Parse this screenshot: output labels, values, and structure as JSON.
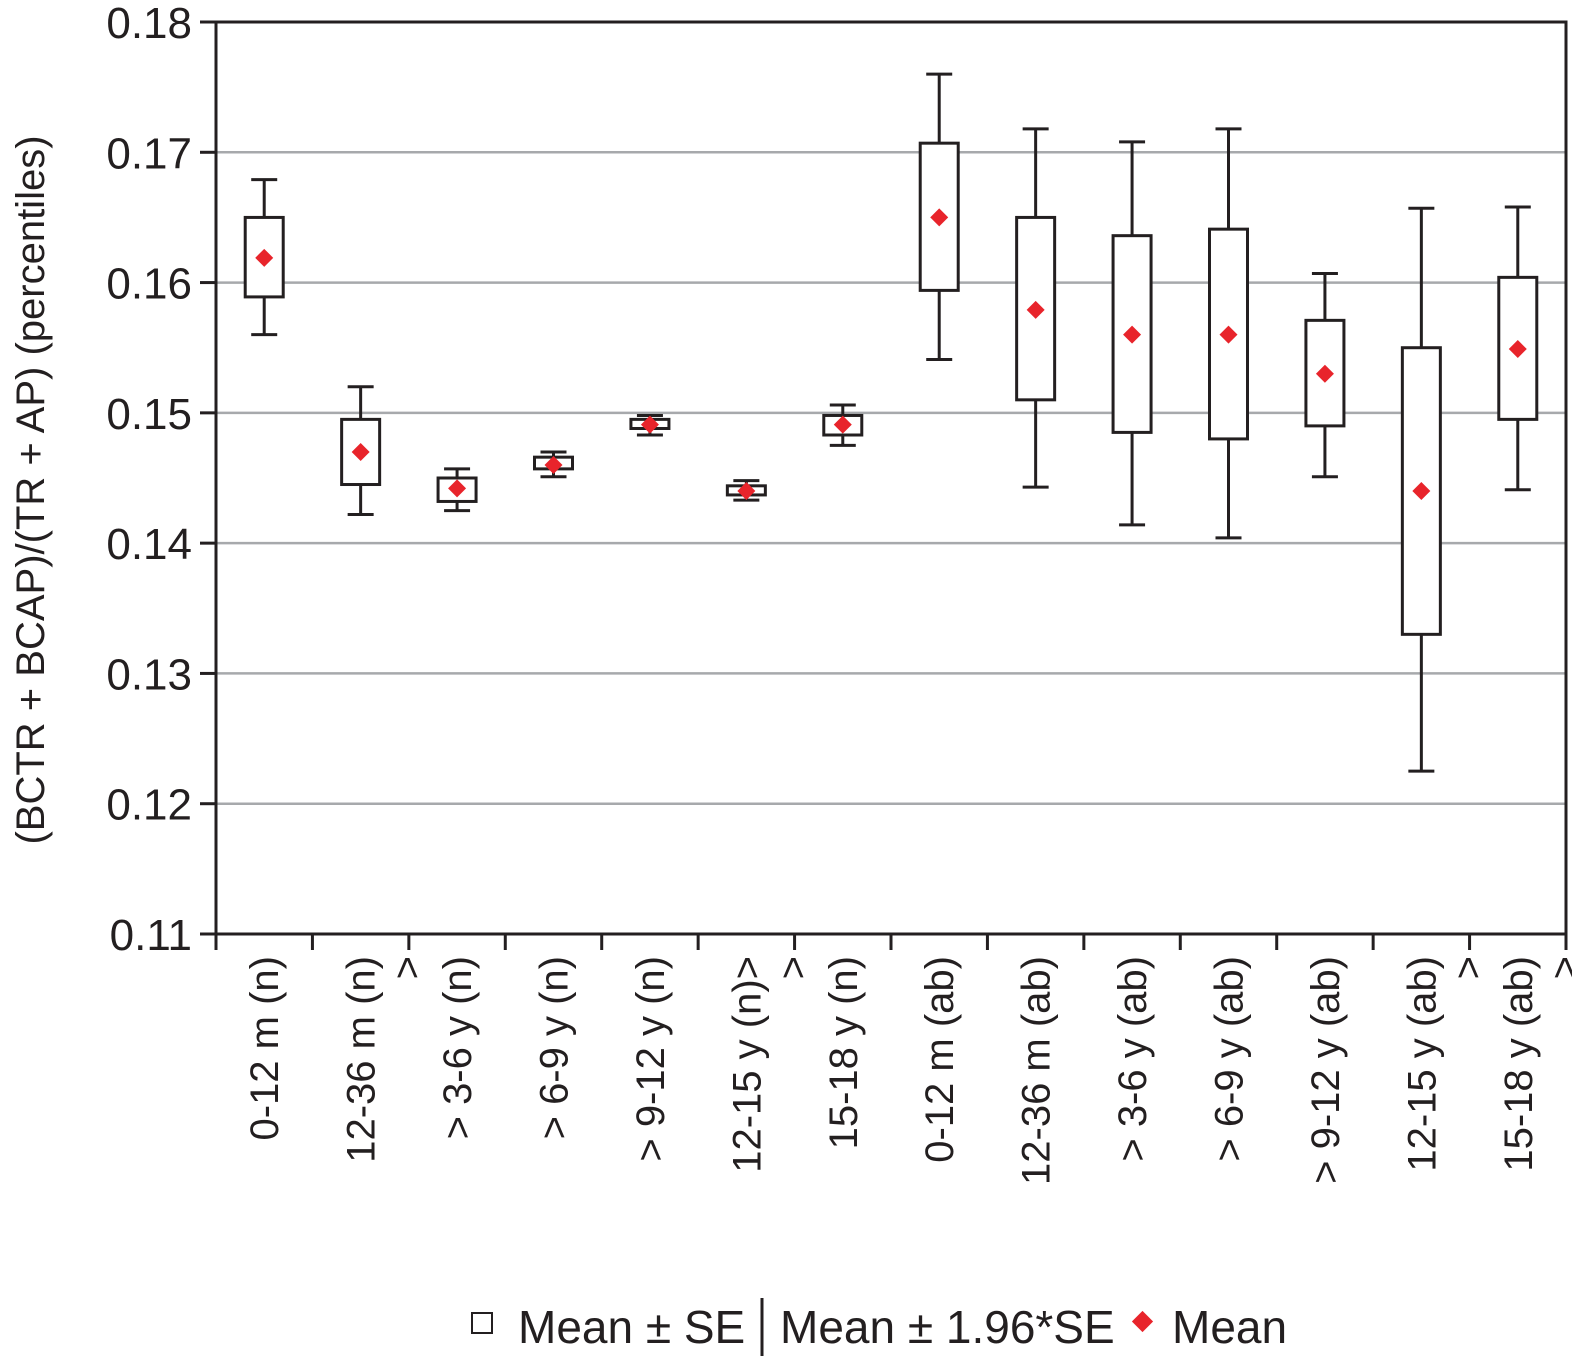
{
  "chart_data": {
    "type": "box",
    "ylabel": "(BCTR + BCAP)/(TR + AP) (percentiles)",
    "ylim": [
      0.11,
      0.18
    ],
    "yticks": [
      0.11,
      0.12,
      0.13,
      0.14,
      0.15,
      0.16,
      0.17,
      0.18
    ],
    "ytick_labels": [
      "0.11",
      "0.12",
      "0.13",
      "0.14",
      "0.15",
      "0.16",
      "0.17",
      "0.18"
    ],
    "grid": true,
    "categories": [
      {
        "line1": "0-12 m (n)",
        "line2": ""
      },
      {
        "line1": "12-36 m (n)",
        "line2": ">"
      },
      {
        "line1": "> 3-6 y (n)",
        "line2": ""
      },
      {
        "line1": "> 6-9 y (n)",
        "line2": ""
      },
      {
        "line1": "> 9-12 y (n)",
        "line2": ""
      },
      {
        "line1": "12-15 y (n)>",
        "line2": ">"
      },
      {
        "line1": "15-18 y (n)",
        "line2": ""
      },
      {
        "line1": "0-12 m (ab)",
        "line2": ""
      },
      {
        "line1": "12-36 m (ab)",
        "line2": ""
      },
      {
        "line1": "> 3-6 y (ab)",
        "line2": ""
      },
      {
        "line1": "> 6-9 y (ab)",
        "line2": ""
      },
      {
        "line1": "> 9-12 y (ab)",
        "line2": ""
      },
      {
        "line1": "12-15 y (ab)",
        "line2": ">"
      },
      {
        "line1": "15-18 y (ab)",
        "line2": ">"
      }
    ],
    "series": {
      "mean": [
        0.1619,
        0.147,
        0.1442,
        0.146,
        0.1491,
        0.144,
        0.1491,
        0.165,
        0.1579,
        0.156,
        0.156,
        0.153,
        0.144,
        0.1549
      ],
      "se_low": [
        0.1589,
        0.1445,
        0.1432,
        0.1457,
        0.1488,
        0.1437,
        0.1483,
        0.1594,
        0.151,
        0.1485,
        0.148,
        0.149,
        0.133,
        0.1495
      ],
      "se_high": [
        0.165,
        0.1495,
        0.145,
        0.1466,
        0.1495,
        0.1444,
        0.1498,
        0.1707,
        0.165,
        0.1636,
        0.1641,
        0.1571,
        0.155,
        0.1604
      ],
      "ci_low": [
        0.156,
        0.1422,
        0.1425,
        0.1451,
        0.1483,
        0.1433,
        0.1475,
        0.1541,
        0.1443,
        0.1414,
        0.1404,
        0.1451,
        0.1225,
        0.1441
      ],
      "ci_high": [
        0.1679,
        0.152,
        0.1457,
        0.147,
        0.1498,
        0.1448,
        0.1506,
        0.176,
        0.1718,
        0.1708,
        0.1718,
        0.1607,
        0.1657,
        0.1658
      ]
    },
    "legend": {
      "position": "bottom",
      "items": [
        "Mean ± SE",
        "Mean ± 1.96*SE",
        "Mean"
      ]
    },
    "colors": {
      "mean_marker": "#e8242b",
      "box_stroke": "#231f20",
      "grid": "#a7a9ac"
    }
  }
}
